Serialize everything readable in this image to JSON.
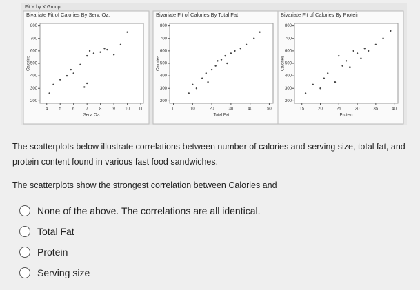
{
  "header": {
    "title": "Fit Y by X Group"
  },
  "chart_data": [
    {
      "type": "scatter",
      "title": "Bivariate Fit of Calories By Serv. Oz.",
      "x_label": "Serv. Oz.",
      "y_label": "Calories",
      "color": "#444444",
      "x": [
        4.2,
        4.5,
        5.0,
        5.5,
        5.8,
        6.0,
        6.5,
        6.8,
        7.0,
        7.0,
        7.2,
        7.5,
        8.0,
        8.3,
        8.5,
        9.0,
        9.5,
        10.0
      ],
      "values": [
        260,
        330,
        370,
        400,
        450,
        420,
        490,
        310,
        340,
        560,
        600,
        580,
        590,
        620,
        610,
        570,
        650,
        750
      ],
      "xlim": [
        3.5,
        11.2
      ],
      "xticks": [
        4,
        5,
        6,
        7,
        8,
        9,
        10,
        11
      ],
      "ylim": [
        180,
        820
      ],
      "yticks": [
        200,
        300,
        400,
        500,
        600,
        700,
        800
      ]
    },
    {
      "type": "scatter",
      "title": "Bivariate Fit of Calories By Total Fat",
      "x_label": "Total Fat",
      "y_label": "Calories",
      "color": "#444444",
      "x": [
        8,
        10,
        12,
        15,
        17,
        18,
        20,
        22,
        23,
        25,
        27,
        28,
        30,
        32,
        35,
        38,
        42,
        45
      ],
      "values": [
        260,
        330,
        300,
        380,
        420,
        350,
        450,
        480,
        520,
        530,
        560,
        500,
        580,
        600,
        620,
        650,
        700,
        750
      ],
      "xlim": [
        -2,
        52
      ],
      "xticks": [
        0,
        10,
        20,
        30,
        40,
        50
      ],
      "ylim": [
        180,
        820
      ],
      "yticks": [
        200,
        300,
        400,
        500,
        600,
        700,
        800
      ]
    },
    {
      "type": "scatter",
      "title": "Bivariate Fit of Calories By Protein",
      "x_label": "Protein",
      "y_label": "Calories",
      "color": "#444444",
      "x": [
        16,
        18,
        20,
        21,
        22,
        24,
        25,
        26,
        27,
        28,
        29,
        30,
        31,
        32,
        33,
        35,
        37,
        39
      ],
      "values": [
        260,
        330,
        300,
        380,
        420,
        350,
        560,
        480,
        520,
        470,
        600,
        580,
        540,
        620,
        600,
        650,
        700,
        760
      ],
      "xlim": [
        13,
        41
      ],
      "xticks": [
        15,
        20,
        25,
        30,
        35,
        40
      ],
      "ylim": [
        180,
        820
      ],
      "yticks": [
        200,
        300,
        400,
        500,
        600,
        700,
        800
      ]
    }
  ],
  "question": {
    "intro": "The scatterplots below illustrate correlations between number of calories and serving size, total fat, and protein content found in various fast food sandwiches.",
    "prompt": "The scatterplots show the strongest correlation between Calories and",
    "options": [
      "None of the above. The correlations are all identical.",
      "Total Fat",
      "Protein",
      "Serving size"
    ]
  }
}
